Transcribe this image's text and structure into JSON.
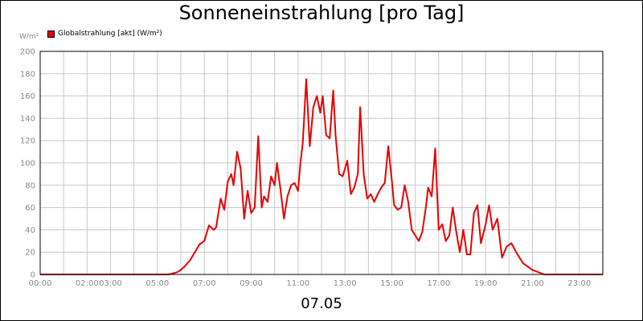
{
  "chart_data": {
    "type": "line",
    "title": "Sonneneinstrahlung [pro Tag]",
    "ylabel": "W/m²",
    "xlabel": "07.05",
    "ylim": [
      0,
      200
    ],
    "yticks": [
      0,
      20,
      40,
      60,
      80,
      100,
      120,
      140,
      160,
      180,
      200
    ],
    "xlim": [
      0,
      24
    ],
    "xticks": [
      {
        "x": 0,
        "label": "00:00"
      },
      {
        "x": 2,
        "label": "02:00"
      },
      {
        "x": 3,
        "label": "03:00"
      },
      {
        "x": 5,
        "label": "05:00"
      },
      {
        "x": 7,
        "label": "07:00"
      },
      {
        "x": 9,
        "label": "09:00"
      },
      {
        "x": 11,
        "label": "11:00"
      },
      {
        "x": 13,
        "label": "13:00"
      },
      {
        "x": 15,
        "label": "15:00"
      },
      {
        "x": 17,
        "label": "17:00"
      },
      {
        "x": 19,
        "label": "19:00"
      },
      {
        "x": 21,
        "label": "21:00"
      },
      {
        "x": 23,
        "label": "23:00"
      }
    ],
    "grid": true,
    "legend_position": "top-left",
    "series": [
      {
        "name": "Globalstrahlung [akt] (W/m²)",
        "color": "#e60000",
        "x": [
          0,
          5.5,
          5.85,
          6.0,
          6.2,
          6.4,
          6.6,
          6.8,
          7.0,
          7.2,
          7.4,
          7.5,
          7.7,
          7.85,
          8.0,
          8.15,
          8.25,
          8.4,
          8.55,
          8.7,
          8.85,
          9.0,
          9.15,
          9.3,
          9.45,
          9.55,
          9.7,
          9.85,
          10.0,
          10.1,
          10.25,
          10.4,
          10.55,
          10.7,
          10.85,
          11.0,
          11.1,
          11.2,
          11.35,
          11.5,
          11.65,
          11.8,
          11.95,
          12.05,
          12.2,
          12.35,
          12.5,
          12.6,
          12.75,
          12.9,
          13.0,
          13.1,
          13.25,
          13.4,
          13.55,
          13.65,
          13.8,
          13.95,
          14.1,
          14.25,
          14.4,
          14.55,
          14.7,
          14.85,
          15.0,
          15.1,
          15.25,
          15.4,
          15.55,
          15.7,
          15.85,
          16.0,
          16.15,
          16.3,
          16.45,
          16.55,
          16.7,
          16.85,
          17.0,
          17.15,
          17.3,
          17.45,
          17.6,
          17.75,
          17.9,
          18.05,
          18.2,
          18.35,
          18.5,
          18.65,
          18.8,
          19.0,
          19.15,
          19.3,
          19.5,
          19.7,
          19.9,
          20.1,
          20.3,
          20.6,
          21.0,
          21.5,
          24
        ],
        "y": [
          0,
          0,
          2,
          4,
          8,
          13,
          20,
          27,
          30,
          44,
          40,
          42,
          68,
          58,
          83,
          90,
          80,
          110,
          95,
          50,
          75,
          55,
          60,
          124,
          60,
          70,
          65,
          88,
          80,
          100,
          76,
          50,
          70,
          80,
          82,
          75,
          100,
          118,
          175,
          115,
          150,
          160,
          145,
          160,
          125,
          122,
          165,
          125,
          90,
          88,
          95,
          102,
          72,
          78,
          90,
          150,
          90,
          68,
          72,
          65,
          72,
          78,
          82,
          115,
          84,
          62,
          58,
          60,
          80,
          65,
          40,
          35,
          30,
          38,
          60,
          78,
          70,
          113,
          40,
          45,
          30,
          35,
          60,
          38,
          20,
          40,
          18,
          18,
          55,
          62,
          28,
          45,
          62,
          40,
          50,
          15,
          25,
          28,
          20,
          10,
          4,
          0,
          0
        ]
      }
    ]
  }
}
